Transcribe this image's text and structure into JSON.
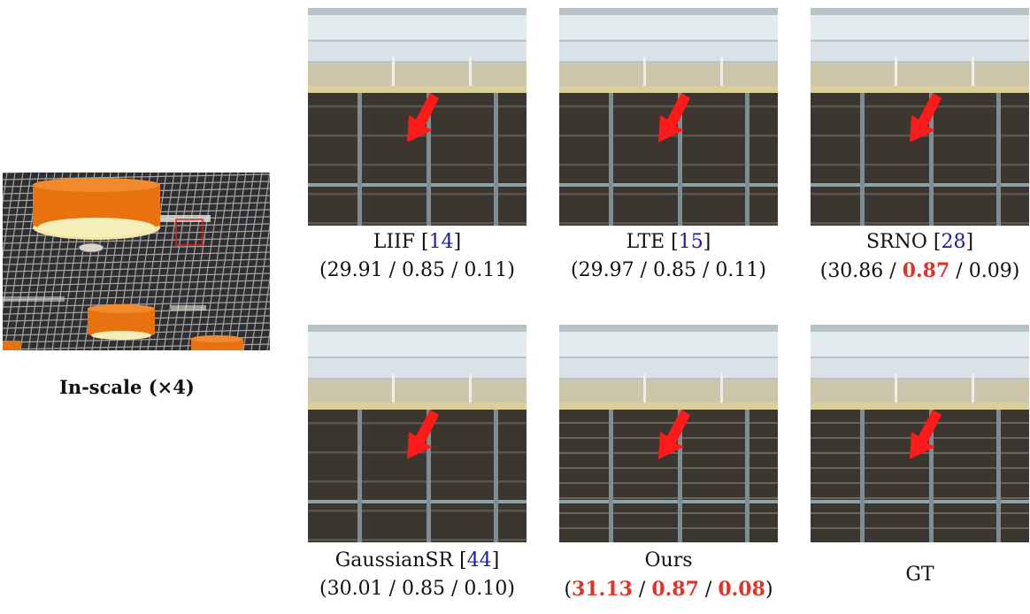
{
  "overview": {
    "caption_bold": "In-scale",
    "caption_scale": "(×4)",
    "colors": {
      "lamp": "#e8720f",
      "lamp_inner": "#f3e7a8",
      "ceiling": "#2f2f33",
      "grid": "#c9c7c2",
      "box": "#e02020"
    }
  },
  "panels": [
    {
      "method": "LIIF",
      "cite": "14",
      "psnr": "29.91",
      "ssim": "0.85",
      "lpips": "0.11",
      "best": []
    },
    {
      "method": "LTE",
      "cite": "15",
      "psnr": "29.97",
      "ssim": "0.85",
      "lpips": "0.11",
      "best": []
    },
    {
      "method": "SRNO",
      "cite": "28",
      "psnr": "30.86",
      "ssim": "0.87",
      "lpips": "0.09",
      "best": [
        "ssim"
      ]
    },
    {
      "method": "GaussianSR",
      "cite": "44",
      "psnr": "30.01",
      "ssim": "0.85",
      "lpips": "0.10",
      "best": []
    },
    {
      "method": "Ours",
      "cite": "",
      "psnr": "31.13",
      "ssim": "0.87",
      "lpips": "0.08",
      "best": [
        "psnr",
        "ssim",
        "lpips"
      ]
    },
    {
      "method": "GT",
      "cite": "",
      "psnr": "",
      "ssim": "",
      "lpips": "",
      "best": []
    }
  ],
  "arrow_color": "#ff1a1a"
}
